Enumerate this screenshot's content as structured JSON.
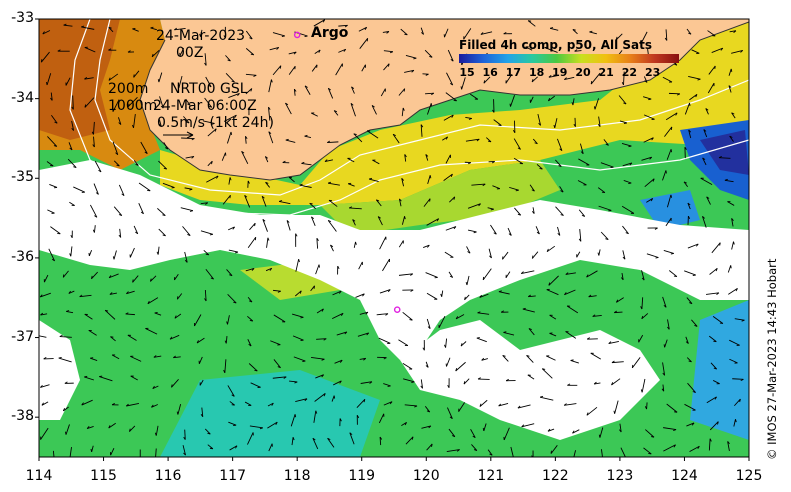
{
  "map": {
    "date": "24-Mar-2023",
    "time": "00Z",
    "contour_labels": {
      "c200": "200m",
      "c1000": "1000m"
    },
    "current_source": "NRT00 GSL",
    "current_time": "24-Mar 06:00Z",
    "scale_label": "0.5m/s (1kt 24h)",
    "argo_label": "Argo",
    "y_ticks": [
      "-33",
      "-34",
      "-35",
      "-36",
      "-37",
      "-38"
    ],
    "x_ticks": [
      "114",
      "115",
      "116",
      "117",
      "118",
      "119",
      "120",
      "121",
      "122",
      "123",
      "124",
      "125"
    ],
    "lat_range": [
      -38.5,
      -33
    ],
    "lon_range": [
      114,
      125
    ],
    "argo_floats": [
      {
        "lon": 118.0,
        "lat": -33.2
      },
      {
        "lon": 119.55,
        "lat": -36.65
      }
    ],
    "colors": {
      "land": "#fbc794",
      "argo": "#e020e0",
      "no_data": "#ffffff"
    }
  },
  "colorbar": {
    "title": "Filled 4h comp, p50, All Sats",
    "labels": [
      "15",
      "16",
      "17",
      "18",
      "19",
      "20",
      "21",
      "22",
      "23"
    ],
    "stops": [
      "#1a1a9c",
      "#1e63d8",
      "#22a3e8",
      "#29c9a0",
      "#4cc840",
      "#c8e020",
      "#f0c010",
      "#e88018",
      "#c03820",
      "#881010"
    ]
  },
  "copyright": "© IMOS 27-Mar-2023 14:43 Hobart"
}
